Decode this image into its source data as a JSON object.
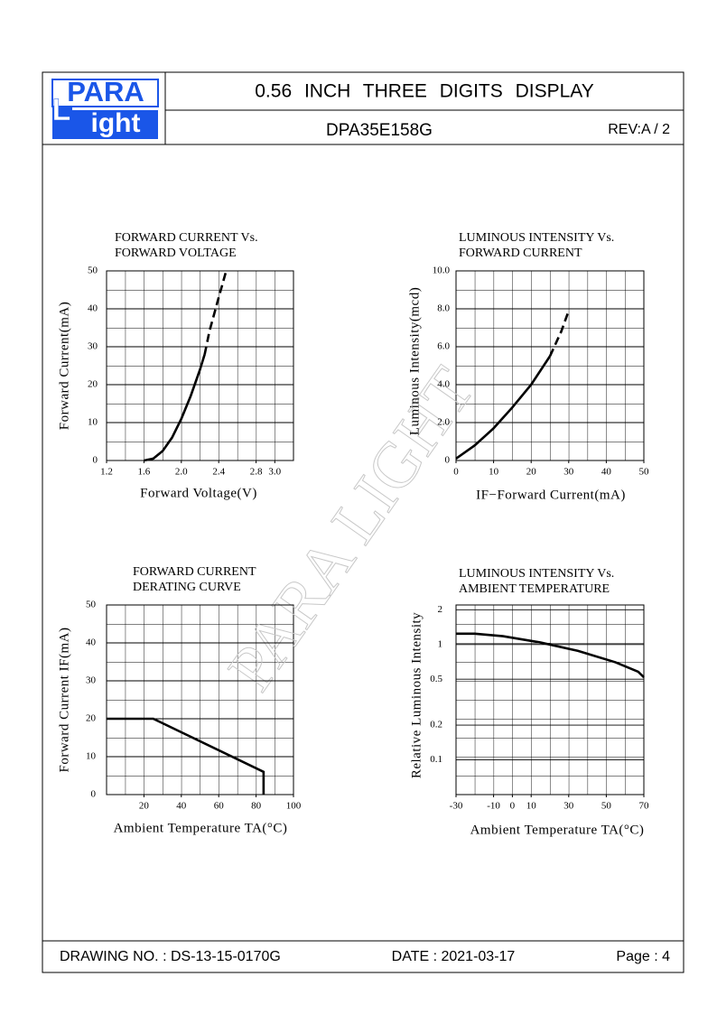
{
  "header": {
    "logo": {
      "line1": "PARA",
      "initial": "L",
      "line2": "ight"
    },
    "title": "0.56 INCH THREE DIGITS DISPLAY",
    "part_number": "DPA35E158G",
    "revision": "REV:A / 2"
  },
  "watermark": "PARA LIGHT",
  "chart_data": [
    {
      "type": "line",
      "title": [
        "FORWARD CURRENT Vs.",
        "FORWARD VOLTAGE"
      ],
      "x_label": "Forward Voltage(V)",
      "y_label": "Forward Current(mA)",
      "xlim": [
        1.2,
        3.2
      ],
      "xticks": [
        1.2,
        1.6,
        {
          "value": 2.0,
          "label": "2.0"
        },
        2.4,
        2.8,
        {
          "value": 3.0,
          "label": "3.0"
        }
      ],
      "ylim": [
        0,
        50
      ],
      "yticks": [
        0,
        10,
        20,
        30,
        40,
        50
      ],
      "grid": true,
      "series": [
        {
          "style": "solid",
          "color": "#000000",
          "x": [
            1.6,
            1.7,
            1.8,
            1.9,
            2.0,
            2.1,
            2.2,
            2.25
          ],
          "values": [
            0,
            0.5,
            2.5,
            6,
            11,
            17,
            24,
            28
          ]
        },
        {
          "style": "dashed",
          "color": "#000000",
          "x": [
            2.25,
            2.3,
            2.4,
            2.48
          ],
          "values": [
            28,
            34,
            43,
            50
          ]
        }
      ]
    },
    {
      "type": "line",
      "title": [
        "LUMINOUS INTENSITY Vs.",
        "FORWARD CURRENT"
      ],
      "x_label": "IF−Forward Current(mA)",
      "y_label": "Luminous Intensity(mcd)",
      "xlim": [
        0,
        50
      ],
      "xticks": [
        0,
        10,
        20,
        30,
        40,
        50
      ],
      "ylim": [
        0,
        10
      ],
      "yticks": [
        0,
        {
          "value": 2,
          "label": "2.0"
        },
        {
          "value": 4,
          "label": "4.0"
        },
        {
          "value": 6,
          "label": "6.0"
        },
        {
          "value": 8,
          "label": "8.0"
        },
        {
          "value": 10,
          "label": "10.0"
        }
      ],
      "grid": true,
      "series": [
        {
          "style": "solid",
          "color": "#000000",
          "x": [
            0,
            5,
            10,
            15,
            20,
            25
          ],
          "values": [
            0.1,
            0.8,
            1.7,
            2.8,
            4.0,
            5.5
          ]
        },
        {
          "style": "dashed",
          "color": "#000000",
          "x": [
            25,
            28,
            30
          ],
          "values": [
            5.5,
            6.8,
            7.9
          ]
        }
      ]
    },
    {
      "type": "line",
      "title": [
        "FORWARD CURRENT",
        "DERATING CURVE"
      ],
      "x_label": "Ambient Temperature TA(°C)",
      "y_label": "Forward Current IF(mA)",
      "xlim": [
        0,
        100
      ],
      "xticks": [
        20,
        40,
        60,
        80,
        100
      ],
      "ylim": [
        0,
        50
      ],
      "yticks": [
        0,
        10,
        20,
        30,
        40,
        50
      ],
      "grid": true,
      "series": [
        {
          "style": "solid",
          "color": "#000000",
          "x": [
            0,
            25,
            84,
            84
          ],
          "values": [
            20,
            20,
            6,
            0
          ]
        }
      ]
    },
    {
      "type": "line",
      "title": [
        "LUMINOUS INTENSITY Vs.",
        "AMBIENT TEMPERATURE"
      ],
      "x_label": "Ambient Temperature TA(°C)",
      "y_label": "Relative Luminous Intensity",
      "xlim": [
        -30,
        70
      ],
      "xticks": [
        -30,
        -10,
        0,
        10,
        30,
        50,
        70
      ],
      "ylim": [
        0.05,
        2.2
      ],
      "yticks": [
        0.1,
        0.2,
        0.5,
        1,
        2
      ],
      "log_y": true,
      "grid": true,
      "series": [
        {
          "style": "solid",
          "color": "#000000",
          "x": [
            -30,
            -20,
            -5,
            15,
            35,
            55,
            67,
            70
          ],
          "values": [
            1.24,
            1.24,
            1.18,
            1.04,
            0.88,
            0.7,
            0.58,
            0.52
          ]
        }
      ]
    }
  ],
  "footer": {
    "drawing_no": "DRAWING NO. : DS-13-15-0170G",
    "date": "DATE : 2021-03-17",
    "page": "Page : 4"
  }
}
